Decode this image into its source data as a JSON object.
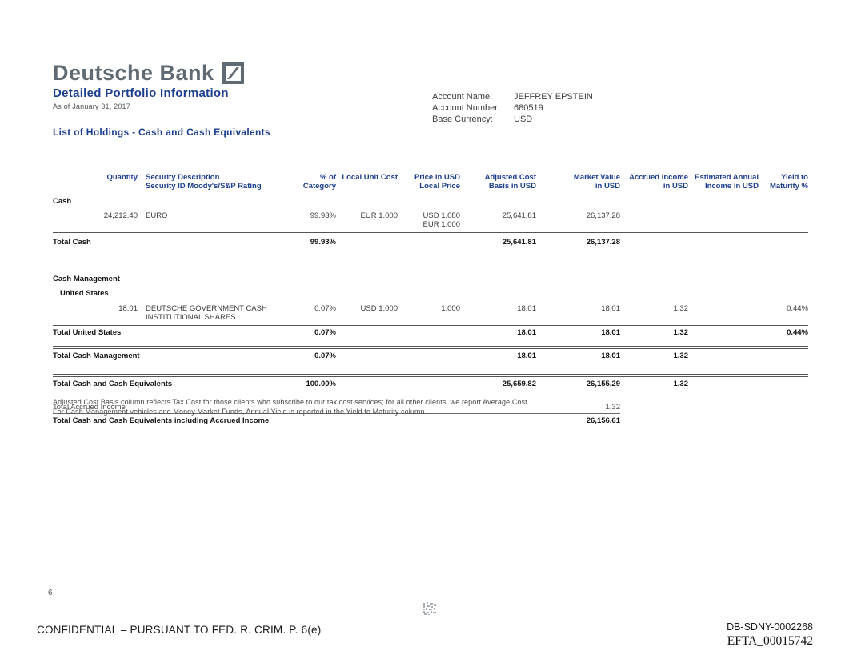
{
  "colors": {
    "brand_blue": "#1d3f8f",
    "brand_gray": "#5f6a72"
  },
  "brand": {
    "name": "Deutsche Bank",
    "logo": "deutsche-bank-slash-logo",
    "report_title": "Detailed Portfolio Information",
    "as_of": "As of January 31, 2017"
  },
  "account": {
    "name_label": "Account Name:",
    "name_value": "JEFFREY EPSTEIN",
    "number_label": "Account Number:",
    "number_value": "680519",
    "currency_label": "Base Currency:",
    "currency_value": "USD"
  },
  "section_title": "List of Holdings - Cash and Cash Equivalents",
  "table": {
    "columns": {
      "quantity": "Quantity",
      "security_description": "Security Description",
      "security_id": "Security ID",
      "rating": "Moody's/S&P Rating",
      "pct_l1": "% of",
      "pct_l2": "Category",
      "local_unit_cost": "Local Unit Cost",
      "price_l1": "Price in USD",
      "price_l2": "Local Price",
      "adjusted_l1": "Adjusted Cost",
      "adjusted_l2": "Basis in USD",
      "market_l1": "Market Value",
      "market_l2": "in USD",
      "accrued_l1": "Accrued Income",
      "accrued_l2": "in USD",
      "est_l1": "Estimated Annual",
      "est_l2": "Income in USD",
      "yield_l1": "Yield to",
      "yield_l2": "Maturity %"
    },
    "rows": [
      {
        "kind": "section",
        "label": "Cash"
      },
      {
        "kind": "data",
        "quantity": "24,212.40",
        "description": [
          "EURO"
        ],
        "pct": "99.93%",
        "local_unit_cost": "EUR 1.000",
        "price": [
          "USD 1.080",
          "EUR 1.000"
        ],
        "adjusted_cost": "25,641.81",
        "market_value": "26,137.28",
        "accrued": "",
        "est_annual": "",
        "yield": ""
      },
      {
        "kind": "total",
        "rule": "double",
        "label": "Total Cash",
        "pct": "99.93%",
        "adjusted_cost": "25,641.81",
        "market_value": "26,137.28",
        "accrued": "",
        "yield": ""
      },
      {
        "kind": "section",
        "label": "Cash Management",
        "gap": 24
      },
      {
        "kind": "section",
        "label": "United States",
        "indent": true
      },
      {
        "kind": "data",
        "quantity": "18.01",
        "description": [
          "DEUTSCHE GOVERNMENT CASH",
          "INSTITUTIONAL SHARES"
        ],
        "pct": "0.07%",
        "local_unit_cost": "USD 1.000",
        "price": [
          "1.000"
        ],
        "adjusted_cost": "18.01",
        "market_value": "18.01",
        "accrued": "1.32",
        "est_annual": "",
        "yield": "0.44%",
        "gap": 6
      },
      {
        "kind": "total",
        "rule": "single",
        "label": "Total United States",
        "pct": "0.07%",
        "adjusted_cost": "18.01",
        "market_value": "18.01",
        "accrued": "1.32",
        "yield": "0.44%"
      },
      {
        "kind": "total",
        "rule": "double",
        "label": "Total Cash Management",
        "pct": "0.07%",
        "adjusted_cost": "18.01",
        "market_value": "18.01",
        "accrued": "1.32",
        "yield": "",
        "gap": 10
      },
      {
        "kind": "total",
        "rule": "double",
        "label": "Total Cash and Cash Equivalents",
        "pct": "100.00%",
        "adjusted_cost": "25,659.82",
        "market_value": "26,155.29",
        "accrued": "1.32",
        "yield": "",
        "gap": 16
      },
      {
        "kind": "accrued",
        "label": "Total Accrued Income",
        "market_value": "1.32",
        "gap": 12
      },
      {
        "kind": "grandtotal",
        "label": "Total Cash and Cash Equivalents including Accrued Income",
        "market_value": "26,156.61"
      }
    ]
  },
  "footnotes": [
    "Adjusted Cost Basis column reflects Tax Cost for those clients who subscribe to our tax cost services; for all other clients, we report Average Cost.",
    "For Cash Management vehicles and Money Market Funds, Annual Yield is reported in the Yield to Maturity column."
  ],
  "page_number": "6",
  "footer": {
    "confidential": "CONFIDENTIAL – PURSUANT TO FED. R. CRIM. P. 6(e)",
    "bates_number": "DB-SDNY-0002268",
    "efta_number": "EFTA_00015742"
  }
}
